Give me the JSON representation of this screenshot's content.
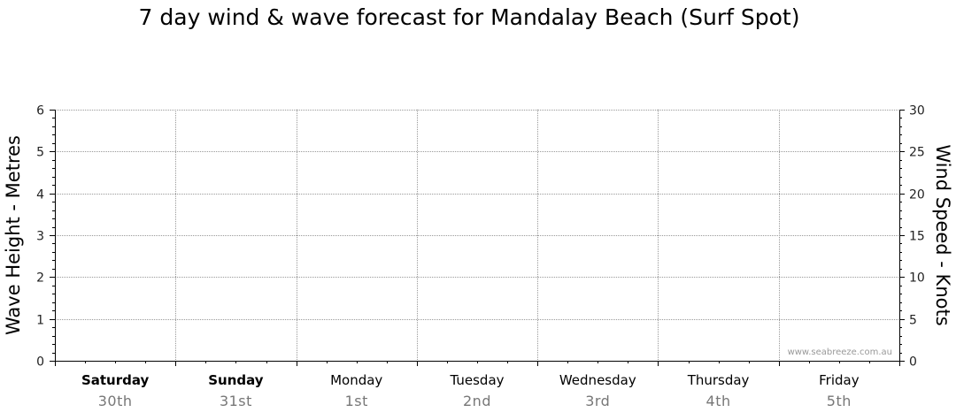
{
  "title": "7 day wind & wave forecast for Mandalay Beach (Surf Spot)",
  "watermark": "www.seabreeze.com.au",
  "chart_data": {
    "type": "line",
    "title": "7 day wind & wave forecast for Mandalay Beach (Surf Spot)",
    "left_axis": {
      "label": "Wave Height - Metres",
      "range": [
        0,
        6
      ],
      "ticks": [
        0,
        1,
        2,
        3,
        4,
        5,
        6
      ]
    },
    "right_axis": {
      "label": "Wind Speed - Knots",
      "range": [
        0,
        30
      ],
      "ticks": [
        0,
        5,
        10,
        15,
        20,
        25,
        30
      ]
    },
    "grid": true,
    "days": [
      {
        "name": "Saturday",
        "date": "30th",
        "bold": true
      },
      {
        "name": "Sunday",
        "date": "31st",
        "bold": true
      },
      {
        "name": "Monday",
        "date": "1st",
        "bold": false
      },
      {
        "name": "Tuesday",
        "date": "2nd",
        "bold": false
      },
      {
        "name": "Wednesday",
        "date": "3rd",
        "bold": false
      },
      {
        "name": "Thursday",
        "date": "4th",
        "bold": false
      },
      {
        "name": "Friday",
        "date": "5th",
        "bold": false
      }
    ],
    "series": []
  }
}
